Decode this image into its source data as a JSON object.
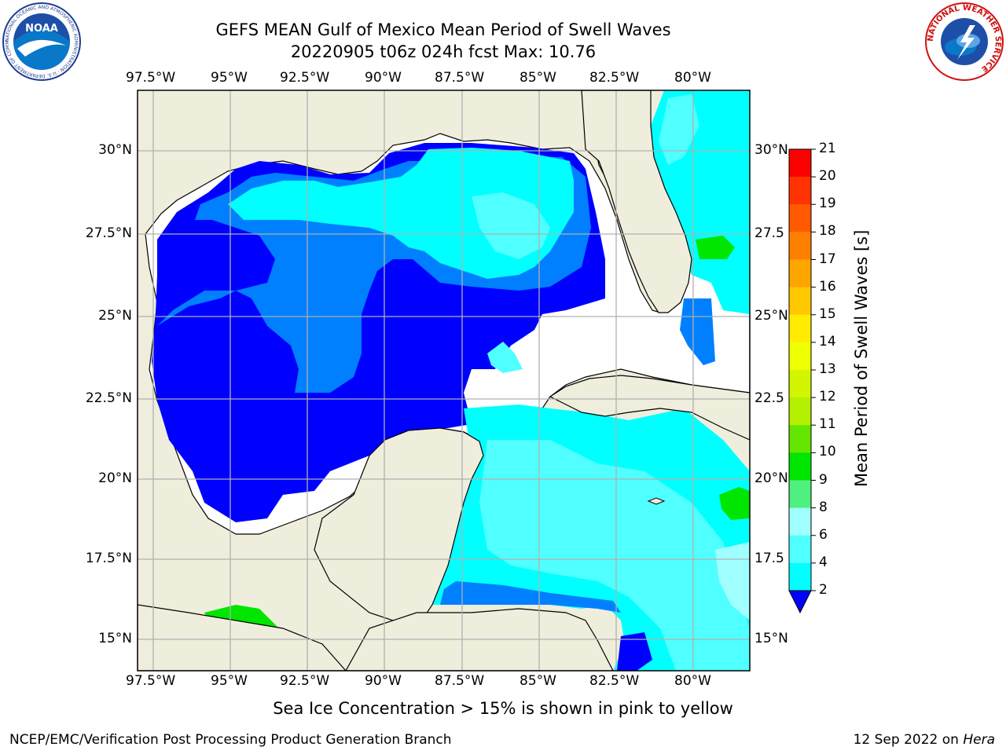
{
  "header": {
    "title_line1": "GEFS MEAN Gulf of Mexico Mean Period of Swell Waves",
    "title_line2": "20220905 t06z 024h fcst   Max: 10.76"
  },
  "logos": {
    "left_name": "NOAA",
    "left_ring_text": "NATIONAL OCEANIC AND ATMOSPHERIC ADMINISTRATION · U.S. DEPARTMENT OF COMMERCE",
    "right_ring_text": "NATIONAL WEATHER SERVICE"
  },
  "map": {
    "lon_ticks": [
      "97.5°W",
      "95°W",
      "92.5°W",
      "90°W",
      "87.5°W",
      "85°W",
      "82.5°W",
      "80°W"
    ],
    "lat_ticks_left": [
      "30°N",
      "27.5°N",
      "25°N",
      "22.5°N",
      "20°N",
      "17.5°N",
      "15°N"
    ],
    "lat_ticks_right": [
      "30°N",
      "27.5",
      "25°N",
      "22.5",
      "20°N",
      "17.5",
      "15°N"
    ],
    "colors": {
      "land": "#efeedd",
      "no_data": "#ffffff",
      "grid": "#b0b0b0"
    }
  },
  "colorbar": {
    "label": "Mean Period of Swell Waves [s]",
    "levels": [
      "21",
      "20",
      "19",
      "18",
      "17",
      "16",
      "15",
      "14",
      "13",
      "12",
      "11",
      "10",
      "9",
      "8",
      "6",
      "4",
      "2"
    ],
    "colors": [
      "#ff0000",
      "#ff3300",
      "#ff5a00",
      "#ff8000",
      "#ffa500",
      "#ffc800",
      "#ffec00",
      "#f0ff00",
      "#d2f500",
      "#b4f000",
      "#64e600",
      "#00e600",
      "#50f080",
      "#a0ffff",
      "#50ffff",
      "#00ffff",
      "#0080ff",
      "#0000ff"
    ]
  },
  "footer": {
    "note": "Sea Ice Concentration > 15% is shown in pink to yellow",
    "credit": "NCEP/EMC/Verification Post Processing Product Generation Branch",
    "run_date": "12 Sep 2022 on",
    "machine": "Hera"
  }
}
